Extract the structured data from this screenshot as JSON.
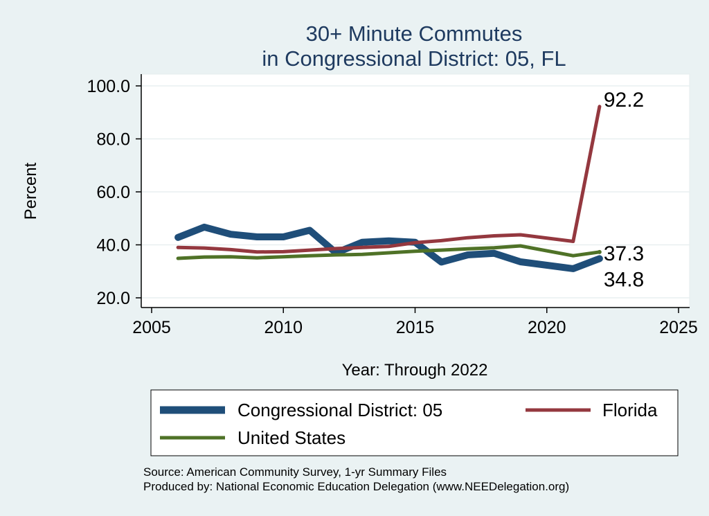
{
  "chart_data": {
    "type": "line",
    "title_line1": "30+ Minute Commutes",
    "title_line2": "in Congressional District:  05, FL",
    "xlabel": "Year: Through 2022",
    "ylabel": "Percent",
    "xlim": [
      2005,
      2025
    ],
    "ylim": [
      20,
      100
    ],
    "xticks": [
      2005,
      2010,
      2015,
      2020,
      2025
    ],
    "yticks": [
      "20.0",
      "40.0",
      "60.0",
      "80.0",
      "100.0"
    ],
    "ytick_values": [
      20,
      40,
      60,
      80,
      100
    ],
    "x": [
      2006,
      2007,
      2008,
      2009,
      2010,
      2011,
      2012,
      2013,
      2014,
      2015,
      2016,
      2017,
      2018,
      2019,
      2021,
      2022
    ],
    "series": [
      {
        "name": "Congressional District:  05",
        "color": "#1f4e79",
        "values": [
          42.8,
          46.7,
          44.0,
          43.0,
          43.0,
          45.5,
          37.0,
          41.0,
          41.5,
          41.0,
          33.5,
          36.2,
          36.8,
          33.6,
          31.0,
          34.8
        ],
        "end_label": "34.8"
      },
      {
        "name": "Florida",
        "color": "#94383f",
        "values": [
          39.0,
          38.8,
          38.2,
          37.3,
          37.4,
          38.0,
          38.6,
          39.0,
          39.4,
          40.8,
          41.6,
          42.7,
          43.4,
          43.8,
          41.3,
          92.2
        ],
        "end_label": "92.2"
      },
      {
        "name": "United States",
        "color": "#4f7227",
        "values": [
          34.9,
          35.4,
          35.5,
          35.1,
          35.5,
          35.9,
          36.2,
          36.4,
          37.0,
          37.6,
          38.0,
          38.5,
          38.9,
          39.6,
          35.9,
          37.3
        ],
        "end_label": "37.3"
      }
    ],
    "legend": {
      "items": [
        "Congressional District:  05",
        "Florida",
        "United States"
      ]
    },
    "source_line1": "Source: American Community Survey, 1-yr Summary Files",
    "source_line2": "Produced by: National Economic Education Delegation (www.NEEDelegation.org)"
  }
}
